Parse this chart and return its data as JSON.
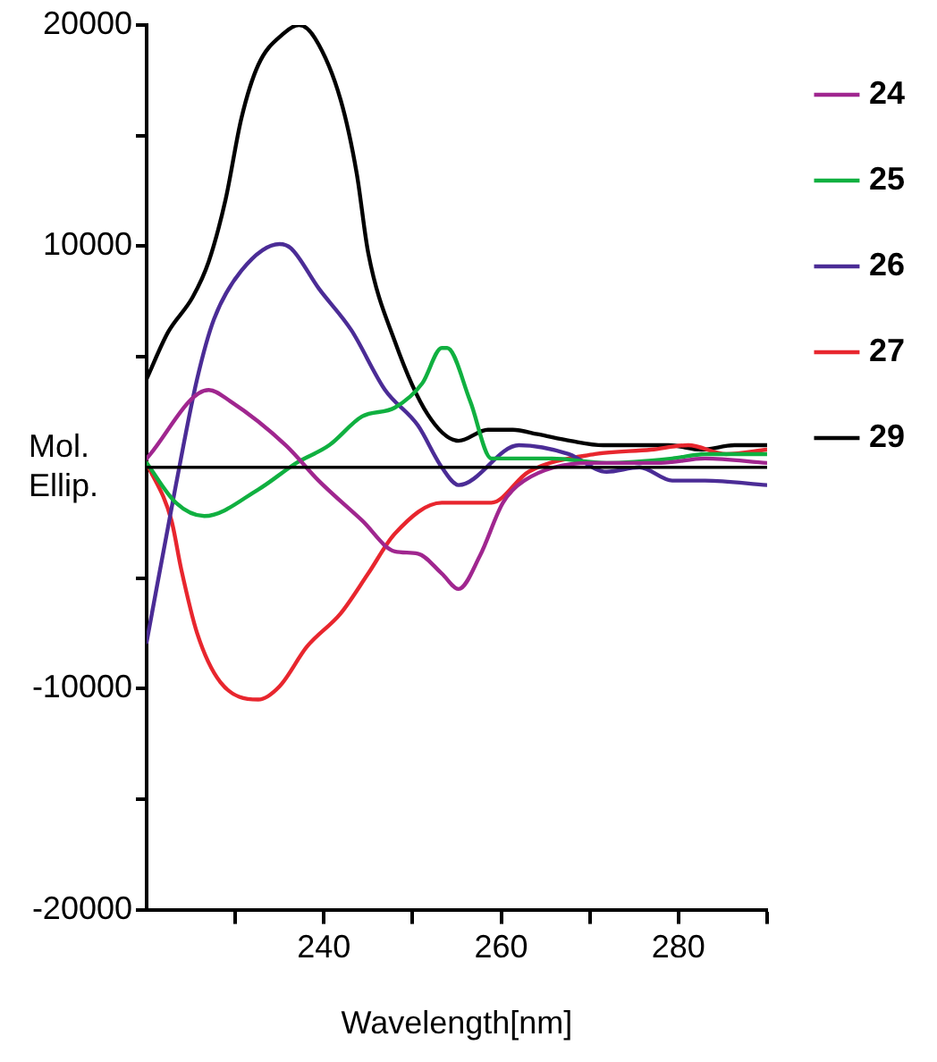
{
  "chart_data": {
    "type": "line",
    "xlabel": "Wavelength[nm]",
    "ylabel": "Mol. Ellip.",
    "xlim": [
      220,
      290
    ],
    "xticks": [
      {
        "value": 230,
        "label": null
      },
      240,
      {
        "value": 250,
        "label": null
      },
      260,
      {
        "value": 270,
        "label": null
      },
      280,
      {
        "value": 290,
        "label": null
      }
    ],
    "ylim": [
      -20000,
      20000
    ],
    "yticks": [
      -20000,
      {
        "value": -15000,
        "label": null
      },
      -10000,
      {
        "value": -5000,
        "label": null
      },
      {
        "value": 5000,
        "label": null
      },
      10000,
      {
        "value": 15000,
        "label": null
      },
      20000
    ],
    "grid": false,
    "legend": "top right",
    "marker": "none",
    "line_style": "solid",
    "ref_lines": [
      {
        "axis": "y",
        "value": 0,
        "color": "#000000"
      }
    ],
    "series": [
      {
        "name": "24",
        "color": "#a0268f",
        "x": [
          220,
          227,
          229.4,
          235.7,
          239.4,
          244.3,
          248,
          250.6,
          253.3,
          255.2,
          257.6,
          260.2,
          262.6,
          270,
          278,
          283,
          290
        ],
        "values": [
          400,
          3500,
          3000,
          1000,
          -600,
          -2400,
          -3800,
          -3900,
          -4800,
          -5500,
          -4000,
          -1600,
          -600,
          200,
          200,
          400,
          200
        ]
      },
      {
        "name": "25",
        "color": "#10b040",
        "x": [
          220,
          223.3,
          226.5,
          232.6,
          236.9,
          240.6,
          244.3,
          248,
          251.1,
          253.3,
          253.9,
          256.5,
          258.9,
          265.7,
          271.9,
          279.3,
          283,
          290
        ],
        "values": [
          200,
          -1600,
          -2200,
          -1000,
          200,
          1000,
          2300,
          2700,
          3800,
          5400,
          5400,
          3000,
          400,
          400,
          200,
          400,
          600,
          600
        ]
      },
      {
        "name": "26",
        "color": "#4b2c96",
        "x": [
          220,
          223.3,
          225.7,
          227.6,
          230.7,
          235,
          236.3,
          239.4,
          243.1,
          246.9,
          250.6,
          253.3,
          255.2,
          262,
          267.6,
          271.9,
          275.6,
          279.3,
          283,
          290
        ],
        "values": [
          -7900,
          -800,
          4000,
          6700,
          8900,
          10100,
          9900,
          8100,
          6200,
          3500,
          1900,
          0,
          -800,
          1000,
          600,
          -200,
          0,
          -600,
          -600,
          -800
        ]
      },
      {
        "name": "27",
        "color": "#e8262e",
        "x": [
          220,
          222.8,
          223.9,
          225.7,
          228.3,
          232.6,
          235,
          238.1,
          241.9,
          245,
          248,
          253.3,
          258.9,
          263.1,
          270.6,
          276.9,
          281.1,
          285.4,
          290
        ],
        "values": [
          200,
          -2400,
          -4600,
          -7500,
          -9700,
          -10500,
          -9900,
          -8100,
          -6600,
          -4800,
          -3000,
          -1600,
          -1600,
          -200,
          600,
          800,
          1000,
          600,
          800
        ]
      },
      {
        "name": "29",
        "color": "#000000",
        "x": [
          220,
          222.4,
          225.2,
          227,
          228.9,
          230.7,
          232.6,
          235.4,
          237.2,
          239,
          241.9,
          243.7,
          245,
          248,
          251.7,
          255.2,
          258.5,
          261.3,
          264.1,
          267.8,
          271.5,
          275.2,
          278.9,
          282.6,
          286.3,
          290
        ],
        "values": [
          4000,
          6100,
          7700,
          9300,
          12100,
          15800,
          18200,
          19600,
          20000,
          19400,
          16600,
          13300,
          9700,
          5700,
          2400,
          1200,
          1700,
          1700,
          1500,
          1200,
          1000,
          1000,
          1000,
          800,
          1000,
          1000
        ]
      }
    ]
  }
}
